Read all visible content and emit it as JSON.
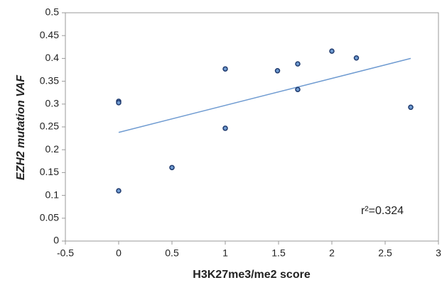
{
  "chart_data": {
    "type": "scatter",
    "x_label": "H3K27me3/me2 score",
    "y_label": "EZH2 mutation VAF",
    "annotation": "r²=0.324",
    "x": [
      0,
      0,
      0,
      0.5,
      1,
      1,
      1.49,
      1.68,
      1.68,
      2,
      2.23,
      2.74
    ],
    "values": [
      0.306,
      0.303,
      0.11,
      0.161,
      0.377,
      0.247,
      0.373,
      0.388,
      0.332,
      0.416,
      0.401,
      0.293
    ],
    "color": "#1f3a6e",
    "trendline": {
      "x": [
        0,
        2.74
      ],
      "y": [
        0.238,
        0.4
      ],
      "color": "#6f9bd1"
    },
    "xlim": [
      -0.5,
      3
    ],
    "xticks": [
      -0.5,
      0,
      0.5,
      1,
      1.5,
      2,
      2.5,
      3
    ],
    "ylim": [
      0,
      0.5
    ],
    "yticks": [
      0,
      0.05,
      0.1,
      0.15,
      0.2,
      0.25,
      0.3,
      0.35,
      0.4,
      0.45,
      0.5
    ]
  }
}
